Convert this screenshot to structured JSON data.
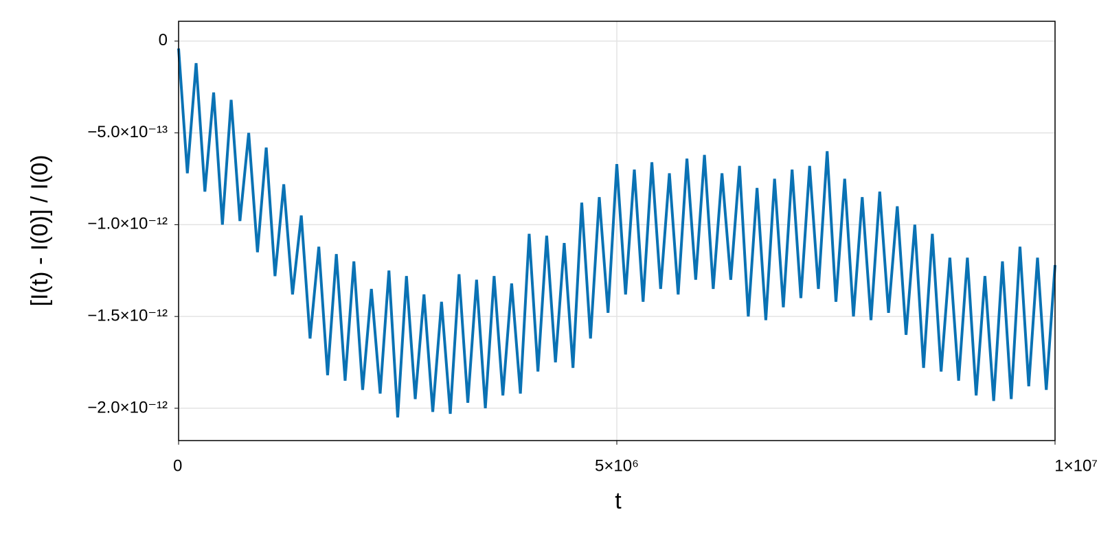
{
  "chart_data": {
    "type": "line",
    "xlabel": "t",
    "ylabel": "[I(t) - I(0)] / I(0)",
    "xlim": [
      0,
      10000000.0
    ],
    "xticks": [
      0,
      {
        "value": 5000000.0,
        "label": "5×10⁶"
      },
      {
        "value": 10000000.0,
        "label": "1×10⁷"
      }
    ],
    "ylim": [
      -2.176e-12,
      1.08e-13
    ],
    "yticks": [
      {
        "value": -2e-12,
        "label": "−2.0×10⁻¹²"
      },
      {
        "value": -1.5e-12,
        "label": "−1.5×10⁻¹²"
      },
      {
        "value": -1e-12,
        "label": "−1.0×10⁻¹²"
      },
      {
        "value": -5e-13,
        "label": "−5.0×10⁻¹³"
      },
      0
    ],
    "grid": true,
    "series": [
      {
        "color": "#0a72b4",
        "x": [
          0,
          100000.0,
          200000.0,
          300000.0,
          400000.0,
          500000.0,
          600000.0,
          700000.0,
          800000.0,
          900000.0,
          1000000.0,
          1100000.0,
          1200000.0,
          1300000.0,
          1400000.0,
          1500000.0,
          1600000.0,
          1700000.0,
          1800000.0,
          1900000.0,
          2000000.0,
          2100000.0,
          2200000.0,
          2300000.0,
          2400000.0,
          2500000.0,
          2600000.0,
          2700000.0,
          2800000.0,
          2900000.0,
          3000000.0,
          3100000.0,
          3200000.0,
          3300000.0,
          3400000.0,
          3500000.0,
          3600000.0,
          3700000.0,
          3800000.0,
          3900000.0,
          4000000.0,
          4100000.0,
          4200000.0,
          4300000.0,
          4400000.0,
          4500000.0,
          4600000.0,
          4700000.0,
          4800000.0,
          4900000.0,
          5000000.0,
          5100000.0,
          5200000.0,
          5300000.0,
          5400000.0,
          5500000.0,
          5600000.0,
          5700000.0,
          5800000.0,
          5900000.0,
          6000000.0,
          6100000.0,
          6200000.0,
          6300000.0,
          6400000.0,
          6500000.0,
          6600000.0,
          6700000.0,
          6800000.0,
          6900000.0,
          7000000.0,
          7100000.0,
          7200000.0,
          7300000.0,
          7400000.0,
          7500000.0,
          7600000.0,
          7700000.0,
          7800000.0,
          7900000.0,
          8000000.0,
          8100000.0,
          8200000.0,
          8300000.0,
          8400000.0,
          8500000.0,
          8600000.0,
          8700000.0,
          8800000.0,
          8900000.0,
          9000000.0,
          9100000.0,
          9200000.0,
          9300000.0,
          9400000.0,
          9500000.0,
          9600000.0,
          9700000.0,
          9800000.0,
          9900000.0,
          10000000.0
        ],
        "values": [
          -4e-14,
          -7.2e-13,
          -1.2e-13,
          -8.2e-13,
          -2.8e-13,
          -1e-12,
          -3.2e-13,
          -9.8e-13,
          -5e-13,
          -1.15e-12,
          -5.8e-13,
          -1.28e-12,
          -7.8e-13,
          -1.38e-12,
          -9.5e-13,
          -1.62e-12,
          -1.12e-12,
          -1.82e-12,
          -1.16e-12,
          -1.85e-12,
          -1.2e-12,
          -1.9e-12,
          -1.35e-12,
          -1.92e-12,
          -1.25e-12,
          -2.05e-12,
          -1.28e-12,
          -1.95e-12,
          -1.38e-12,
          -2.02e-12,
          -1.42e-12,
          -2.03e-12,
          -1.27e-12,
          -1.97e-12,
          -1.3e-12,
          -2e-12,
          -1.28e-12,
          -1.93e-12,
          -1.32e-12,
          -1.92e-12,
          -1.05e-12,
          -1.8e-12,
          -1.06e-12,
          -1.75e-12,
          -1.1e-12,
          -1.78e-12,
          -8.8e-13,
          -1.62e-12,
          -8.5e-13,
          -1.48e-12,
          -6.7e-13,
          -1.38e-12,
          -7e-13,
          -1.42e-12,
          -6.6e-13,
          -1.35e-12,
          -7.2e-13,
          -1.38e-12,
          -6.4e-13,
          -1.3e-12,
          -6.2e-13,
          -1.35e-12,
          -7.2e-13,
          -1.3e-12,
          -6.8e-13,
          -1.5e-12,
          -8e-13,
          -1.52e-12,
          -7.5e-13,
          -1.45e-12,
          -7e-13,
          -1.4e-12,
          -6.8e-13,
          -1.35e-12,
          -6e-13,
          -1.42e-12,
          -7.5e-13,
          -1.5e-12,
          -8.5e-13,
          -1.52e-12,
          -8.2e-13,
          -1.48e-12,
          -9e-13,
          -1.6e-12,
          -1e-12,
          -1.78e-12,
          -1.05e-12,
          -1.8e-12,
          -1.18e-12,
          -1.85e-12,
          -1.18e-12,
          -1.93e-12,
          -1.28e-12,
          -1.96e-12,
          -1.2e-12,
          -1.95e-12,
          -1.12e-12,
          -1.88e-12,
          -1.18e-12,
          -1.9e-12,
          -1.22e-12
        ]
      }
    ]
  }
}
